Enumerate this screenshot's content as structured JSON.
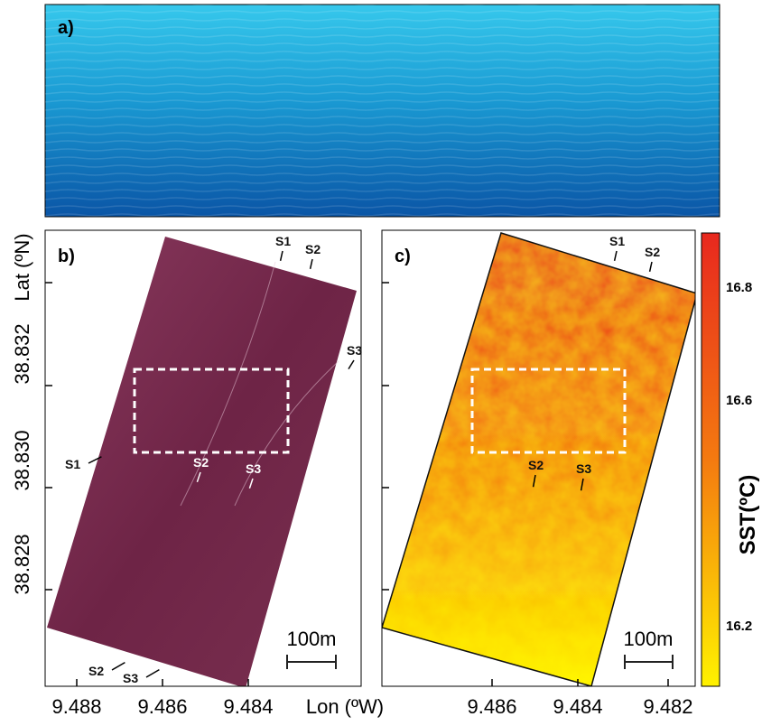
{
  "panels": {
    "a": "a)",
    "b": "b)",
    "c": "c)"
  },
  "y_axis": {
    "title": "Lat (ºN)",
    "ticks": [
      "38.828",
      "38.830",
      "38.832"
    ]
  },
  "x_axis": {
    "title": "Lon (ºW)",
    "ticks_b": [
      "9.488",
      "9.486",
      "9.484"
    ],
    "ticks_c": [
      "9.486",
      "9.484",
      "9.482"
    ]
  },
  "colorbar": {
    "title": "SST(ºC)",
    "ticks": [
      "16.8",
      "16.6",
      "16.2"
    ]
  },
  "scale_bar": {
    "b": "100m",
    "c": "100m"
  },
  "annotations_b": [
    "S1",
    "S2",
    "S3",
    "S1",
    "S2",
    "S3",
    "S2",
    "S3"
  ],
  "annotations_c": [
    "S1",
    "S2",
    "S2",
    "S3"
  ]
}
